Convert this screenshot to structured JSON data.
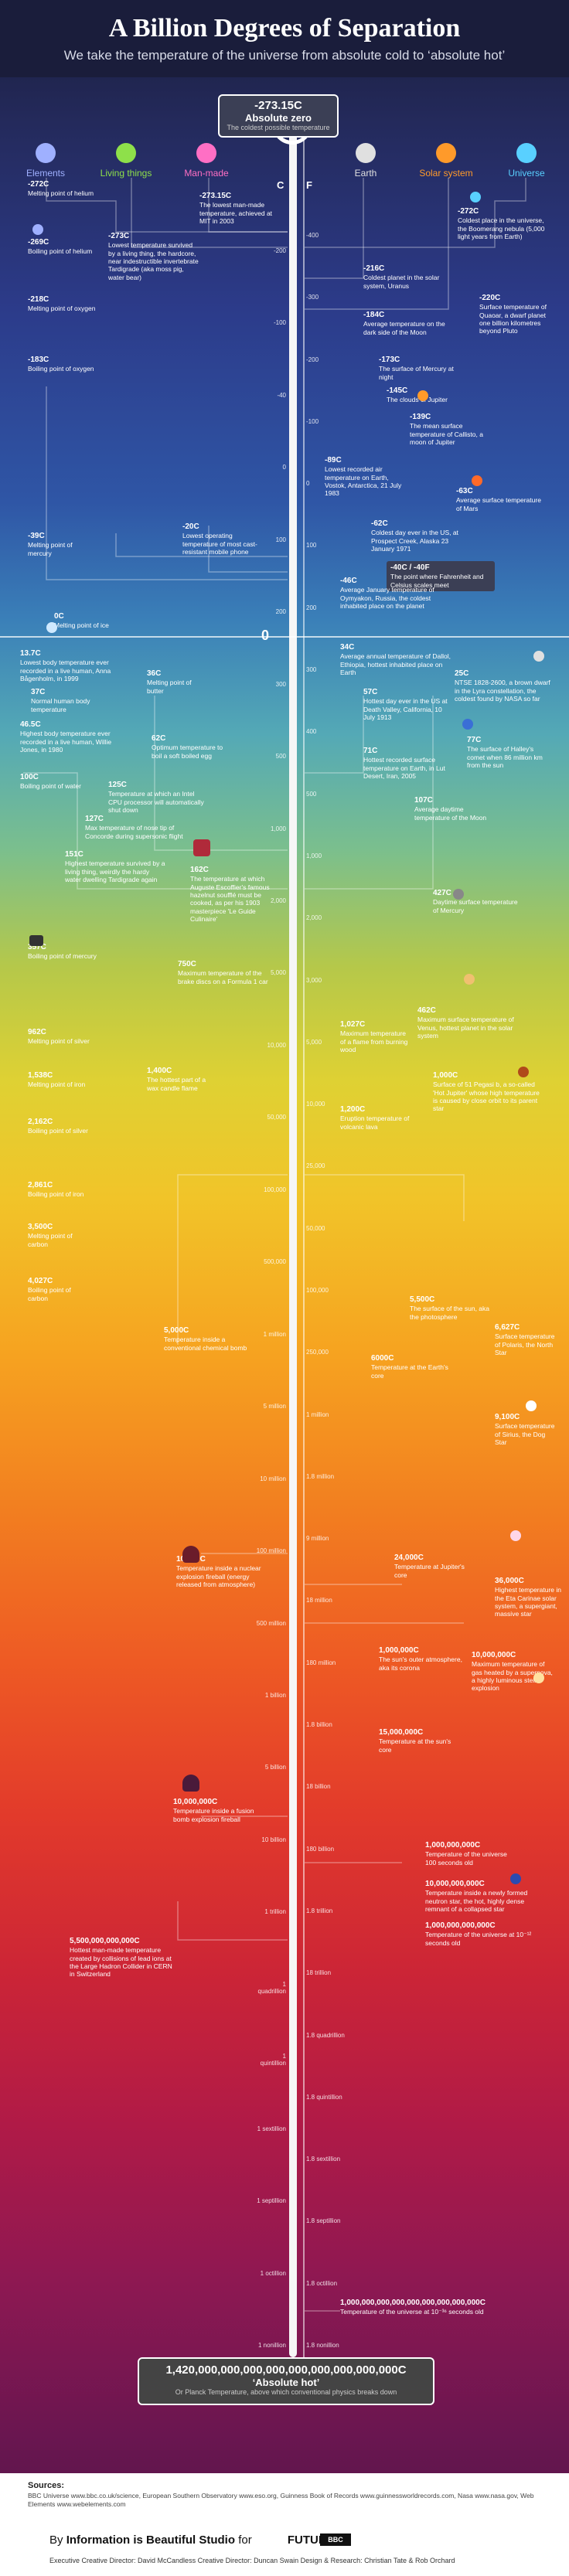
{
  "header": {
    "title": "A Billion Degrees of Separation",
    "subtitle": "We take the temperature of the universe from absolute cold to ‘absolute hot’"
  },
  "categories": [
    {
      "label": "Elements",
      "icon": "atom-icon",
      "color": "#9fb0ff"
    },
    {
      "label": "Living things",
      "icon": "heart-icon",
      "color": "#8ee04a"
    },
    {
      "label": "Man-made",
      "icon": "robot-icon",
      "color": "#ff6fc4"
    },
    {
      "label": "Earth",
      "icon": "globe-icon",
      "color": "#e0e0e0"
    },
    {
      "label": "Solar system",
      "icon": "sun-icon",
      "color": "#ff9a2a"
    },
    {
      "label": "Universe",
      "icon": "star-icon",
      "color": "#59d0ff"
    }
  ],
  "axis": {
    "celsius_label": "C",
    "fahrenheit_label": "F",
    "zero": "0",
    "absolute_zero_title": "-273.15C",
    "absolute_zero_sub": "Absolute zero",
    "absolute_zero_note": "The coldest possible temperature",
    "absolute_hot_title": "1,420,000,000,000,000,000,000,000,000,000C",
    "absolute_hot_sub": "‘Absolute hot’",
    "absolute_hot_note": "Or Planck Temperature, above which conventional physics breaks down",
    "ticks_f": [
      "-400",
      "-300",
      "-200",
      "-100",
      "0",
      "100",
      "200",
      "300",
      "400",
      "500",
      "1,000",
      "2,000",
      "3,000",
      "5,000",
      "10,000",
      "25,000",
      "50,000",
      "100,000",
      "250,000",
      "1 million",
      "1.8 million",
      "9 million",
      "18 million",
      "180 million",
      "1.8 billion",
      "18 billion",
      "180 billion",
      "1.8 trillion",
      "18 trillion",
      "1.8 quadrillion",
      "1.8 quintillion",
      "1.8 sextillion",
      "1.8 septillion",
      "1.8 octillion",
      "1.8 nonillion"
    ],
    "ticks_c": [
      "-200",
      "-100",
      "-40",
      "0",
      "100",
      "200",
      "300",
      "500",
      "1,000",
      "2,000",
      "5,000",
      "10,000",
      "50,000",
      "100,000",
      "500,000",
      "1 million",
      "5 million",
      "10 million",
      "100 million",
      "500 million",
      "1 billion",
      "5 billion",
      "10 billion",
      "1 trillion",
      "1 quadrillion",
      "1 quintillion",
      "1 sextillion",
      "1 septillion",
      "1 octillion",
      "1 nonillion"
    ],
    "neg40_label": "-40C / -40F",
    "neg40_note": "The point where Fahrenheit and Celsius scales meet"
  },
  "annotations": {
    "helium_melt": {
      "t": "-272C",
      "d": "Melting point of helium"
    },
    "helium_boil": {
      "t": "-269C",
      "d": "Boiling point of helium"
    },
    "tardigrade": {
      "t": "-273C",
      "d": "Lowest temperature survived by a living thing, the hardcore, near indestructible invertebrate Tardigrade (aka moss pig, water bear)"
    },
    "lowest_made": {
      "t": "-273.15C",
      "d": "The lowest man-made temperature, achieved at MIT in 2003"
    },
    "boomerang": {
      "t": "-272C",
      "d": "Coldest place in the universe, the Boomerang nebula (5,000 light years from Earth)"
    },
    "oxy_melt": {
      "t": "-218C",
      "d": "Melting point of oxygen"
    },
    "oxy_boil": {
      "t": "-183C",
      "d": "Boiling point of oxygen"
    },
    "uranus": {
      "t": "-216C",
      "d": "Coldest planet in the solar system, Uranus"
    },
    "quaoar": {
      "t": "-220C",
      "d": "Surface temperature of Quaoar, a dwarf planet one billion kilometres beyond Pluto"
    },
    "moon_dark": {
      "t": "-184C",
      "d": "Average temperature on the dark side of the Moon"
    },
    "mercury_dark": {
      "t": "-173C",
      "d": "The surface of Mercury at night"
    },
    "jupiter_clouds": {
      "t": "-145C",
      "d": "The clouds of Jupiter"
    },
    "callisto": {
      "t": "-139C",
      "d": "The mean surface temperature of Callisto, a moon of Jupiter"
    },
    "vostok": {
      "t": "-89C",
      "d": "Lowest recorded air temperature on Earth, Vostok, Antarctica, 21 July 1983"
    },
    "mars": {
      "t": "-63C",
      "d": "Average surface temperature of Mars"
    },
    "prospect": {
      "t": "-62C",
      "d": "Coldest day ever in the US, at Prospect Creek, Alaska 23 January 1971"
    },
    "phone": {
      "t": "-20C",
      "d": "Lowest operating temperature of most cast-resistant mobile phone"
    },
    "mercury_melt": {
      "t": "-39C",
      "d": "Melting point of mercury"
    },
    "oymyakon": {
      "t": "-46C",
      "d": "Average January temperature of Oymyakon, Russia, the coldest inhabited place on the planet"
    },
    "ice_melt": {
      "t": "0C",
      "d": "Melting point of ice"
    },
    "dallol": {
      "t": "34C",
      "d": "Average annual temperature of Dallol, Ethiopia, hottest inhabited place on Earth"
    },
    "ulcer": {
      "t": "13.7C",
      "d": "Lowest body temperature ever recorded in a live human, Anna Bågenholm, in 1999"
    },
    "butter": {
      "t": "36C",
      "d": "Melting point of butter"
    },
    "normal_body": {
      "t": "37C",
      "d": "Normal human body temperature"
    },
    "death_valley": {
      "t": "57C",
      "d": "Hottest day ever in the US at Death Valley, California, 10 July 1913"
    },
    "ntse": {
      "t": "25C",
      "d": "NTSE 1828-2600, a brown dwarf in the Lyra constellation, the coldest found by NASA so far"
    },
    "highest_body": {
      "t": "46.5C",
      "d": "Highest body temperature ever recorded in a live human, Willie Jones, in 1980"
    },
    "egg": {
      "t": "62C",
      "d": "Optimum temperature to boil a soft boiled egg"
    },
    "iran": {
      "t": "71C",
      "d": "Hottest recorded surface temperature on Earth, in Lut Desert, Iran, 2005"
    },
    "halley": {
      "t": "77C",
      "d": "The surface of Halley's comet when 86 million km from the sun"
    },
    "water_boil": {
      "t": "100C",
      "d": "Boiling point of water"
    },
    "cpu": {
      "t": "125C",
      "d": "Temperature at which an Intel CPU processor will automatically shut down"
    },
    "moon_day": {
      "t": "107C",
      "d": "Average daytime temperature of the Moon"
    },
    "concorde": {
      "t": "127C",
      "d": "Max temperature of nose tip of Concorde during supersonic flight"
    },
    "tardigrade_hot": {
      "t": "151C",
      "d": "Highest temperature survived by a living thing, weirdly the hardy water dwelling Tardigrade again"
    },
    "souffle": {
      "t": "162C",
      "d": "The temperature at which Auguste Escoffier's famous hazelnut soufflé must be cooked, as per his 1903 masterpiece 'Le Guide Culinaire'"
    },
    "mercury_day": {
      "t": "427C",
      "d": "Daytime surface temperature of Mercury"
    },
    "mercury_boil": {
      "t": "357C",
      "d": "Boiling point of mercury"
    },
    "brakes": {
      "t": "750C",
      "d": "Maximum temperature of the brake discs on a Formula 1 car"
    },
    "venus": {
      "t": "462C",
      "d": "Maximum surface temperature of Venus, hottest planet in the solar system"
    },
    "wood": {
      "t": "1,027C",
      "d": "Maximum temperature of a flame from burning wood"
    },
    "silver_melt": {
      "t": "962C",
      "d": "Melting point of silver"
    },
    "iron_melt": {
      "t": "1,538C",
      "d": "Melting point of iron"
    },
    "candle": {
      "t": "1,400C",
      "d": "The hottest part of a wax candle flame"
    },
    "pegasi": {
      "t": "1,000C",
      "d": "Surface of 51 Pegasi b, a so-called 'Hot Jupiter' whose high temperature is caused by close orbit to its parent star"
    },
    "lava": {
      "t": "1,200C",
      "d": "Eruption temperature of volcanic lava"
    },
    "silver_boil": {
      "t": "2,162C",
      "d": "Boiling point of silver"
    },
    "iron_boil": {
      "t": "2,861C",
      "d": "Boiling point of iron"
    },
    "carbon_melt": {
      "t": "3,500C",
      "d": "Melting point of carbon"
    },
    "carbon_boil": {
      "t": "4,027C",
      "d": "Boiling point of carbon"
    },
    "chemical_bomb": {
      "t": "5,000C",
      "d": "Temperature inside a conventional chemical bomb"
    },
    "photosphere": {
      "t": "5,500C",
      "d": "The surface of the sun, aka the photosphere"
    },
    "earth_core": {
      "t": "6000C",
      "d": "Temperature at the Earth's core"
    },
    "polaris": {
      "t": "6,627C",
      "d": "Surface temperature of Polaris, the North Star"
    },
    "sirius": {
      "t": "9,100C",
      "d": "Surface temperature of Sirius, the Dog Star"
    },
    "nuclear": {
      "t": "10,000C",
      "d": "Temperature inside a nuclear explosion fireball (energy released from atmosphere)"
    },
    "jupiter_core": {
      "t": "24,000C",
      "d": "Temperature at Jupiter's core"
    },
    "eta_carinae": {
      "t": "36,000C",
      "d": "Highest temperature in the Eta Carinae solar system, a supergiant, massive star"
    },
    "corona": {
      "t": "1,000,000C",
      "d": "The sun's outer atmosphere, aka its corona"
    },
    "supernova": {
      "t": "10,000,000C",
      "d": "Maximum temperature of gas heated by a supernova, a highly luminous stellar explosion"
    },
    "sun_core": {
      "t": "15,000,000C",
      "d": "Temperature at the sun's core"
    },
    "fusion": {
      "t": "10,000,000C",
      "d": "Temperature inside a fusion bomb explosion fireball"
    },
    "universe_100s": {
      "t": "1,000,000,000C",
      "d": "Temperature of the universe 100 seconds old"
    },
    "neutron": {
      "t": "10,000,000,000C",
      "d": "Temperature inside a newly formed neutron star, the hot, highly dense remnant of a collapsed star"
    },
    "universe_1s": {
      "t": "1,000,000,000,000C",
      "d": "Temperature of the universe at 10⁻¹² seconds old"
    },
    "lhc": {
      "t": "5,500,000,000,000C",
      "d": "Hottest man-made temperature created by collisions of lead ions at the Large Hadron Collider in CERN in Switzerland"
    },
    "universe_early": {
      "t": "1,000,000,000,000,000,000,000,000,000C",
      "d": "Temperature of the universe at 10⁻³⁶ seconds old"
    }
  },
  "footer": {
    "sources_head": "Sources:",
    "sources_text": "BBC Universe www.bbc.co.uk/science, European Southern Observatory www.eso.org, Guinness Book of Records www.guinnessworldrecords.com, Nasa www.nasa.gov, Web Elements www.webelements.com",
    "credit_by": "By",
    "credit_main": "Information is Beautiful Studio",
    "credit_for": "for",
    "credit_future": "FUTURE",
    "bbc": "BBC",
    "credits_line": "Executive Creative Director: David McCandless   Creative Director: Duncan Swain   Design & Research: Christian Tate & Rob Orchard"
  }
}
